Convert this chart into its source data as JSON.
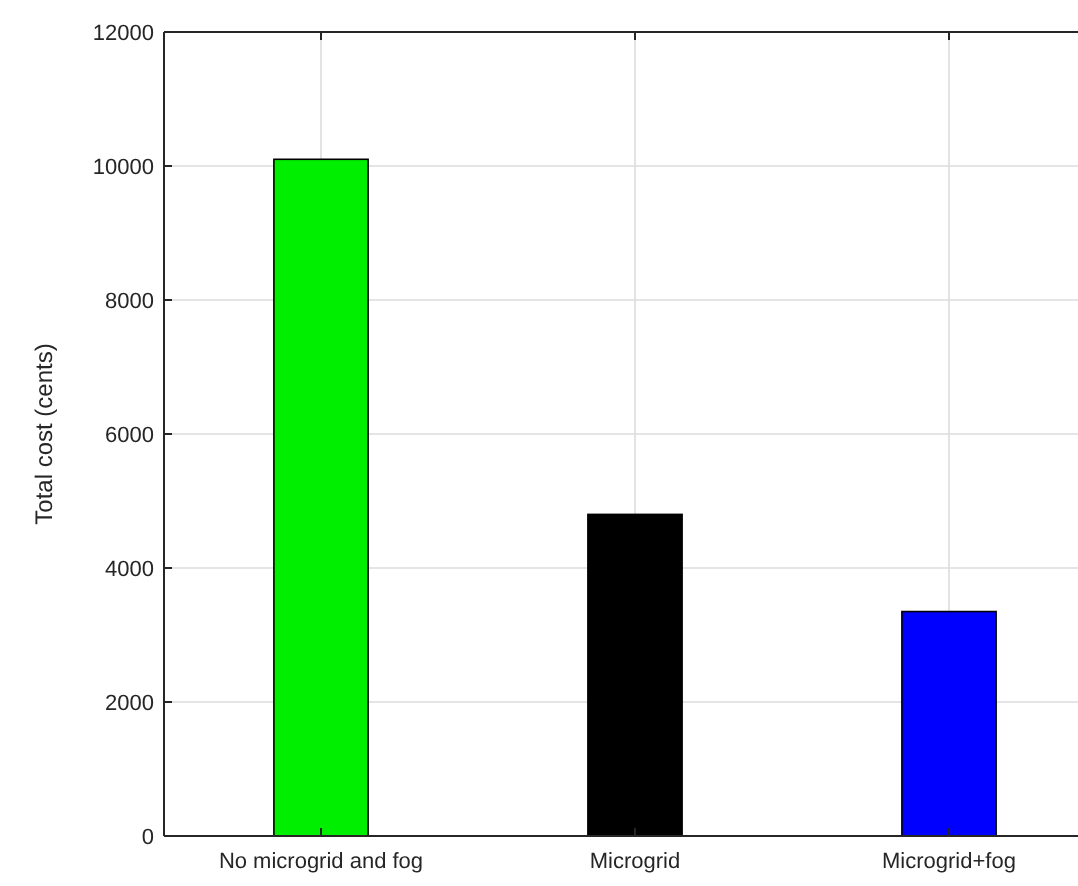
{
  "chart_data": {
    "type": "bar",
    "ylabel": "Total cost (cents)",
    "categories": [
      "No microgrid and fog",
      "Microgrid",
      "Microgrid+fog"
    ],
    "values": [
      10100,
      4800,
      3350
    ],
    "colors": [
      "#00ee00",
      "#000000",
      "#0000ff"
    ],
    "ylim": [
      0,
      12000
    ],
    "yticks": [
      0,
      2000,
      4000,
      6000,
      8000,
      10000,
      12000
    ],
    "grid": true
  }
}
